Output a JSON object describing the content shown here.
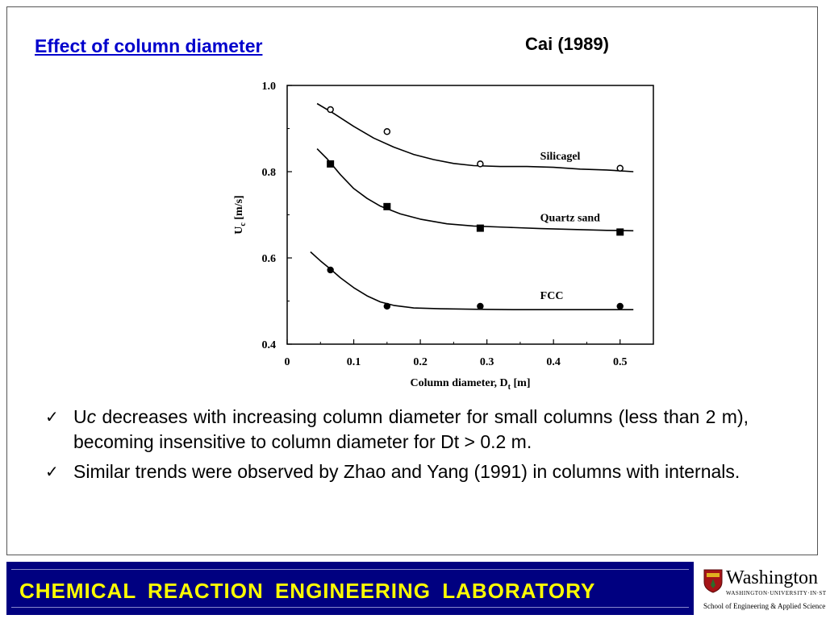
{
  "slide": {
    "title": "Effect of column diameter",
    "citation": "Cai (1989)"
  },
  "chart_data": {
    "type": "scatter",
    "xlabel": "Column diameter, D",
    "xlabel_sub": "t",
    "xlabel_unit": " [m]",
    "ylabel": "U",
    "ylabel_sub": "c",
    "ylabel_unit": " [m/s]",
    "xlim": [
      0,
      0.55
    ],
    "ylim": [
      0.4,
      1.0
    ],
    "x_ticks": [
      0,
      0.1,
      0.2,
      0.3,
      0.4,
      0.5
    ],
    "x_tick_labels": [
      "0",
      "0.1",
      "0.2",
      "0.3",
      "0.4",
      "0.5"
    ],
    "y_ticks": [
      0.4,
      0.6,
      0.8,
      1.0
    ],
    "y_tick_labels": [
      "0.4",
      "0.6",
      "0.8",
      "1.0"
    ],
    "grid": false,
    "series": [
      {
        "name": "Silicagel",
        "marker": "open-circle",
        "x": [
          0.065,
          0.15,
          0.29,
          0.5
        ],
        "y": [
          0.944,
          0.893,
          0.818,
          0.808
        ],
        "curve_x": [
          0.045,
          0.07,
          0.1,
          0.13,
          0.16,
          0.19,
          0.22,
          0.25,
          0.28,
          0.32,
          0.36,
          0.4,
          0.44,
          0.48,
          0.52
        ],
        "curve_y": [
          0.958,
          0.935,
          0.905,
          0.878,
          0.857,
          0.84,
          0.828,
          0.819,
          0.814,
          0.812,
          0.812,
          0.81,
          0.806,
          0.804,
          0.8
        ]
      },
      {
        "name": "Quartz sand",
        "marker": "filled-square",
        "x": [
          0.065,
          0.15,
          0.29,
          0.5
        ],
        "y": [
          0.818,
          0.719,
          0.669,
          0.66
        ],
        "curve_x": [
          0.045,
          0.06,
          0.08,
          0.1,
          0.12,
          0.14,
          0.17,
          0.2,
          0.24,
          0.28,
          0.33,
          0.38,
          0.43,
          0.48,
          0.52
        ],
        "curve_y": [
          0.853,
          0.83,
          0.793,
          0.761,
          0.738,
          0.72,
          0.702,
          0.69,
          0.679,
          0.674,
          0.671,
          0.668,
          0.666,
          0.664,
          0.663
        ]
      },
      {
        "name": "FCC",
        "marker": "filled-circle",
        "x": [
          0.065,
          0.15,
          0.29,
          0.5
        ],
        "y": [
          0.572,
          0.488,
          0.488,
          0.488
        ],
        "curve_x": [
          0.035,
          0.05,
          0.065,
          0.08,
          0.1,
          0.12,
          0.14,
          0.16,
          0.19,
          0.23,
          0.28,
          0.34,
          0.4,
          0.46,
          0.52
        ],
        "curve_y": [
          0.614,
          0.593,
          0.574,
          0.554,
          0.531,
          0.512,
          0.498,
          0.49,
          0.484,
          0.482,
          0.481,
          0.48,
          0.48,
          0.48,
          0.48
        ]
      }
    ]
  },
  "bullets": [
    {
      "lead": "U",
      "lead_italic": "c",
      "text": " decreases with increasing column diameter for small columns (less than 2 m), becoming insensitive to column diameter for Dt > 0.2 m."
    },
    {
      "lead": "",
      "lead_italic": "",
      "text": " Similar trends were observed by Zhao and Yang (1991) in columns with internals."
    }
  ],
  "footer": {
    "lab_name": "CHEMICAL REACTION ENGINEERING LABORATORY"
  },
  "logo": {
    "name": "Washington",
    "sub": "WASHINGTON·UNIVERSITY·IN·ST·LOUIS",
    "school": "School of Engineering & Applied Science"
  }
}
